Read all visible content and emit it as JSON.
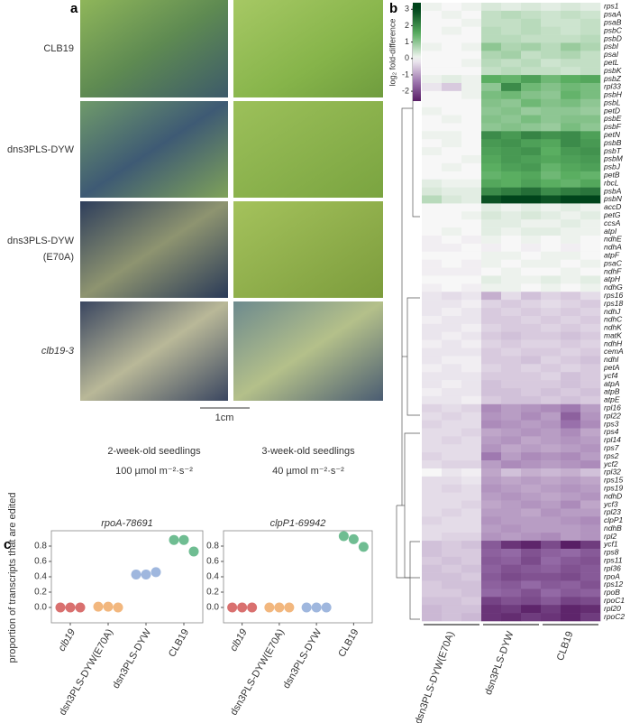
{
  "panel_labels": [
    "a",
    "b",
    "c"
  ],
  "photo_panel": {
    "row_labels": [
      [
        "CLB19"
      ],
      [
        "dns3PLS-DYW"
      ],
      [
        "dns3PLS-DYW",
        "(E70A)"
      ],
      [
        "clb19-3"
      ]
    ],
    "scale_bar": "1cm",
    "column_captions": [
      [
        "2-week-old seedlings",
        "100 µmol m⁻²·s⁻²"
      ],
      [
        "3-week-old seedlings",
        "40 µmol m⁻²·s⁻²"
      ]
    ]
  },
  "chart_data": [
    {
      "type": "heatmap",
      "colorbar": {
        "label": "log₂ fold-difference",
        "ticks": [
          3,
          2,
          1,
          0,
          -1,
          -2
        ],
        "lim": [
          -2.6,
          3.4
        ]
      },
      "clim": [
        -3,
        3
      ],
      "colormap": [
        "#40004b",
        "#9970ab",
        "#f7f7f7",
        "#5aae61",
        "#00441b"
      ],
      "column_groups": [
        "dsn3PLS-DYW(E70A)",
        "dsn3PLS-DYW",
        "CLB19"
      ],
      "rows": [
        "rps1",
        "psaA",
        "psaB",
        "psbC",
        "psbD",
        "psbI",
        "psaI",
        "petL",
        "psbK",
        "psbZ",
        "rpl33",
        "psbH",
        "psbL",
        "petD",
        "psbE",
        "psbF",
        "petN",
        "psbB",
        "psbT",
        "psbM",
        "psbJ",
        "petB",
        "rbcL",
        "psbA",
        "psbN",
        "accD",
        "petG",
        "ccsA",
        "atpI",
        "ndhE",
        "ndhA",
        "atpF",
        "psaC",
        "ndhF",
        "atpH",
        "ndhG",
        "rps16",
        "rps18",
        "ndhJ",
        "ndhC",
        "ndhK",
        "matK",
        "ndhH",
        "cemA",
        "ndhI",
        "petA",
        "ycf4",
        "atpA",
        "atpB",
        "atpE",
        "rpl16",
        "rpl22",
        "rps3",
        "rps4",
        "rpl14",
        "rps7",
        "rps2",
        "ycf2",
        "rpl32",
        "rps15",
        "rps19",
        "ndhD",
        "ycf3",
        "rpl23",
        "clpP1",
        "ndhB",
        "rpl2",
        "ycf1",
        "rps8",
        "rps11",
        "rpl36",
        "rpoA",
        "rps12",
        "rpoB",
        "rpoC1",
        "rpl20",
        "rpoC2"
      ],
      "values": [
        [
          0.1,
          0,
          0.1,
          0.3,
          0.2,
          0.3,
          0.2,
          0.3,
          0.2
        ],
        [
          0,
          0.1,
          0,
          0.5,
          0.6,
          0.5,
          0.4,
          0.5,
          0.4
        ],
        [
          0,
          0,
          0.1,
          0.5,
          0.5,
          0.6,
          0.4,
          0.4,
          0.5
        ],
        [
          0,
          0.1,
          0,
          0.6,
          0.5,
          0.6,
          0.5,
          0.4,
          0.5
        ],
        [
          0,
          0,
          0,
          0.6,
          0.6,
          0.5,
          0.5,
          0.5,
          0.6
        ],
        [
          0.1,
          0,
          0.1,
          1.0,
          0.7,
          0.8,
          0.6,
          0.9,
          0.7
        ],
        [
          0,
          0,
          0,
          0.7,
          0.8,
          0.5,
          0.6,
          0.7,
          0.5
        ],
        [
          0,
          0,
          0.1,
          0.6,
          0.5,
          0.6,
          0.4,
          0.5,
          0.5
        ],
        [
          0,
          0,
          0,
          0.5,
          0.6,
          0.5,
          0.5,
          0.4,
          0.5
        ],
        [
          0.1,
          0.2,
          0.1,
          1.5,
          1.4,
          1.7,
          1.3,
          1.5,
          1.6
        ],
        [
          -0.2,
          -0.5,
          0.1,
          1.0,
          2.0,
          1.3,
          1.1,
          1.3,
          1.2
        ],
        [
          0,
          0,
          0.1,
          1.2,
          1.3,
          1.1,
          1.0,
          1.4,
          1.2
        ],
        [
          0,
          0,
          0,
          1.1,
          1.0,
          1.3,
          1.1,
          1.2,
          1.0
        ],
        [
          0.1,
          0,
          0,
          1.0,
          1.1,
          0.9,
          1.0,
          1.0,
          0.9
        ],
        [
          0,
          0.1,
          0,
          1.1,
          1.0,
          1.2,
          1.0,
          1.1,
          1.1
        ],
        [
          0,
          0,
          0,
          1.0,
          1.1,
          1.0,
          0.9,
          1.2,
          1.0
        ],
        [
          0.1,
          0.1,
          0,
          2.0,
          1.8,
          2.1,
          1.9,
          2.0,
          1.7
        ],
        [
          0,
          0.1,
          0,
          1.8,
          1.9,
          1.7,
          1.6,
          2.0,
          1.8
        ],
        [
          0.1,
          0,
          0,
          1.7,
          1.8,
          1.9,
          1.5,
          1.8,
          1.9
        ],
        [
          0,
          0,
          0.1,
          1.6,
          1.8,
          1.7,
          1.6,
          1.7,
          1.8
        ],
        [
          0,
          0.1,
          0,
          1.5,
          1.7,
          1.8,
          1.4,
          1.6,
          1.7
        ],
        [
          0,
          0,
          0,
          1.4,
          1.5,
          1.6,
          1.3,
          1.5,
          1.4
        ],
        [
          0.2,
          0.1,
          0.1,
          1.6,
          1.5,
          1.7,
          1.5,
          1.4,
          1.6
        ],
        [
          0.3,
          0.2,
          0.2,
          2.0,
          2.2,
          2.4,
          2.0,
          2.2,
          2.3
        ],
        [
          0.6,
          0.3,
          0.2,
          2.8,
          3.3,
          3.0,
          2.8,
          3.1,
          3.4
        ],
        [
          0,
          0,
          0,
          0.2,
          0.1,
          0.2,
          0.1,
          0.2,
          0.1
        ],
        [
          0,
          0,
          0.1,
          0.3,
          0.2,
          0.3,
          0.2,
          0.1,
          0.2
        ],
        [
          0,
          0,
          0,
          0.2,
          0.2,
          0.1,
          0.1,
          0.2,
          0.1
        ],
        [
          0,
          0.1,
          0,
          0.2,
          0.1,
          0.2,
          0.2,
          0.1,
          0.1
        ],
        [
          -0.1,
          0,
          -0.1,
          0.1,
          0,
          0.1,
          0,
          0.1,
          0
        ],
        [
          -0.1,
          -0.1,
          0,
          -0.1,
          0,
          -0.1,
          0,
          -0.1,
          0
        ],
        [
          0,
          0,
          0,
          0.1,
          0.1,
          0,
          0.1,
          0.1,
          0
        ],
        [
          -0.1,
          0,
          -0.1,
          0.1,
          0,
          0.1,
          0.1,
          0,
          0.1
        ],
        [
          -0.1,
          -0.1,
          -0.1,
          0,
          0.1,
          0,
          0,
          0.1,
          0
        ],
        [
          0,
          0,
          0,
          0.2,
          0.1,
          0.1,
          0.2,
          0.1,
          0.2
        ],
        [
          -0.1,
          0,
          -0.1,
          0.1,
          0.1,
          0,
          0.1,
          0,
          0.1
        ],
        [
          -0.2,
          -0.3,
          -0.2,
          -0.8,
          -0.3,
          -0.6,
          -0.4,
          -0.5,
          -0.3
        ],
        [
          -0.2,
          -0.2,
          -0.1,
          -0.4,
          -0.5,
          -0.4,
          -0.3,
          -0.4,
          -0.5
        ],
        [
          -0.2,
          -0.1,
          -0.2,
          -0.5,
          -0.4,
          -0.5,
          -0.4,
          -0.5,
          -0.4
        ],
        [
          -0.1,
          -0.2,
          -0.2,
          -0.5,
          -0.5,
          -0.4,
          -0.5,
          -0.4,
          -0.5
        ],
        [
          -0.2,
          -0.2,
          -0.1,
          -0.4,
          -0.5,
          -0.5,
          -0.4,
          -0.5,
          -0.4
        ],
        [
          -0.2,
          -0.1,
          -0.2,
          -0.5,
          -0.6,
          -0.5,
          -0.5,
          -0.6,
          -0.5
        ],
        [
          -0.1,
          -0.2,
          -0.1,
          -0.4,
          -0.5,
          -0.4,
          -0.4,
          -0.5,
          -0.4
        ],
        [
          -0.2,
          -0.2,
          -0.2,
          -0.5,
          -0.4,
          -0.5,
          -0.5,
          -0.4,
          -0.5
        ],
        [
          -0.2,
          -0.1,
          -0.1,
          -0.5,
          -0.5,
          -0.6,
          -0.4,
          -0.5,
          -0.6
        ],
        [
          -0.1,
          -0.2,
          -0.1,
          -0.4,
          -0.5,
          -0.4,
          -0.5,
          -0.4,
          -0.5
        ],
        [
          -0.2,
          -0.2,
          -0.2,
          -0.5,
          -0.5,
          -0.5,
          -0.4,
          -0.6,
          -0.5
        ],
        [
          -0.2,
          -0.1,
          -0.2,
          -0.6,
          -0.5,
          -0.5,
          -0.5,
          -0.6,
          -0.5
        ],
        [
          -0.1,
          -0.2,
          -0.2,
          -0.6,
          -0.6,
          -0.5,
          -0.6,
          -0.5,
          -0.6
        ],
        [
          -0.2,
          -0.2,
          -0.1,
          -0.5,
          -0.6,
          -0.6,
          -0.5,
          -0.6,
          -0.5
        ],
        [
          -0.4,
          -0.3,
          -0.4,
          -1.2,
          -1.0,
          -1.1,
          -1.2,
          -1.4,
          -1.0
        ],
        [
          -0.3,
          -0.4,
          -0.3,
          -1.1,
          -1.0,
          -1.2,
          -1.0,
          -1.7,
          -1.1
        ],
        [
          -0.4,
          -0.3,
          -0.3,
          -1.2,
          -1.1,
          -1.0,
          -1.1,
          -1.5,
          -1.2
        ],
        [
          -0.3,
          -0.3,
          -0.4,
          -0.9,
          -1.0,
          -1.1,
          -1.0,
          -1.2,
          -0.9
        ],
        [
          -0.3,
          -0.4,
          -0.3,
          -1.0,
          -1.1,
          -0.9,
          -1.0,
          -1.1,
          -1.0
        ],
        [
          -0.3,
          -0.3,
          -0.3,
          -1.1,
          -0.9,
          -1.0,
          -0.9,
          -1.0,
          -1.1
        ],
        [
          -0.4,
          -0.3,
          -0.3,
          -1.4,
          -1.0,
          -1.2,
          -1.1,
          -1.2,
          -1.0
        ],
        [
          -0.3,
          -0.4,
          -0.4,
          -1.0,
          -1.2,
          -1.1,
          -1.0,
          -1.1,
          -1.2
        ],
        [
          0,
          -0.2,
          -0.1,
          -0.9,
          -0.6,
          -0.8,
          -0.7,
          -0.8,
          -0.6
        ],
        [
          -0.3,
          -0.3,
          -0.2,
          -1.0,
          -0.9,
          -1.0,
          -0.9,
          -1.0,
          -0.9
        ],
        [
          -0.3,
          -0.4,
          -0.3,
          -1.1,
          -1.0,
          -0.9,
          -1.0,
          -1.1,
          -1.0
        ],
        [
          -0.3,
          -0.3,
          -0.3,
          -1.0,
          -1.1,
          -1.0,
          -0.9,
          -1.0,
          -1.1
        ],
        [
          -0.3,
          -0.3,
          -0.4,
          -0.9,
          -1.0,
          -1.1,
          -1.0,
          -1.2,
          -0.9
        ],
        [
          -0.3,
          -0.4,
          -0.3,
          -1.0,
          -1.0,
          -0.9,
          -1.1,
          -1.0,
          -1.0
        ],
        [
          -0.4,
          -0.3,
          -0.3,
          -1.1,
          -1.0,
          -1.0,
          -1.0,
          -1.1,
          -1.2
        ],
        [
          -0.3,
          -0.3,
          -0.3,
          -1.0,
          -1.1,
          -1.0,
          -1.0,
          -1.0,
          -1.1
        ],
        [
          -0.3,
          -0.4,
          -0.4,
          -1.1,
          -1.0,
          -1.1,
          -1.2,
          -1.0,
          -1.1
        ],
        [
          -0.6,
          -0.5,
          -0.6,
          -1.8,
          -2.3,
          -2.5,
          -2.0,
          -2.6,
          -2.2
        ],
        [
          -0.6,
          -0.5,
          -0.5,
          -1.7,
          -1.6,
          -1.9,
          -1.7,
          -1.6,
          -1.8
        ],
        [
          -0.5,
          -0.6,
          -0.5,
          -1.8,
          -1.7,
          -2.0,
          -1.6,
          -1.8,
          -1.9
        ],
        [
          -0.6,
          -0.5,
          -0.6,
          -1.7,
          -1.9,
          -1.8,
          -1.7,
          -1.9,
          -1.8
        ],
        [
          -0.6,
          -0.6,
          -0.5,
          -1.8,
          -2.0,
          -1.9,
          -1.9,
          -2.0,
          -1.8
        ],
        [
          -0.5,
          -0.6,
          -0.6,
          -1.7,
          -1.8,
          -1.6,
          -1.8,
          -1.7,
          -1.9
        ],
        [
          -0.5,
          -0.5,
          -0.6,
          -1.6,
          -1.7,
          -1.9,
          -1.6,
          -1.8,
          -1.7
        ],
        [
          -0.6,
          -0.6,
          -0.5,
          -2.1,
          -1.9,
          -2.0,
          -1.8,
          -2.1,
          -2.0
        ],
        [
          -0.7,
          -0.6,
          -0.6,
          -2.3,
          -2.2,
          -2.5,
          -2.2,
          -2.5,
          -2.4
        ],
        [
          -0.7,
          -0.6,
          -0.7,
          -2.3,
          -2.4,
          -2.2,
          -2.3,
          -2.5,
          -2.2
        ]
      ]
    },
    {
      "type": "scatter",
      "title": "rpoA-78691",
      "ylabel": "proportion of transcripts that are edited",
      "categories": [
        "clb19",
        "dsn3PLS-DYW(E70A)",
        "dsn3PLS-DYW",
        "CLB19"
      ],
      "colors": [
        "#d9706f",
        "#f2b77e",
        "#9fb7de",
        "#6fbd92"
      ],
      "values": [
        [
          0,
          0,
          0
        ],
        [
          0.01,
          0.01,
          0
        ],
        [
          0.43,
          0.43,
          0.46
        ],
        [
          0.88,
          0.88,
          0.73
        ]
      ],
      "ylim": [
        -0.2,
        1.0
      ],
      "yticks": [
        {
          "value": 0,
          "label": "0.0"
        },
        {
          "value": 0.2,
          "label": "0.2"
        },
        {
          "value": 0.4,
          "label": "0.4"
        },
        {
          "value": 0.6,
          "label": "0.6"
        },
        {
          "value": 0.8,
          "label": "0.8"
        }
      ]
    },
    {
      "type": "scatter",
      "title": "clpP1-69942",
      "categories": [
        "clb19",
        "dsn3PLS-DYW(E70A)",
        "dsn3PLS-DYW",
        "CLB19"
      ],
      "colors": [
        "#d9706f",
        "#f2b77e",
        "#9fb7de",
        "#6fbd92"
      ],
      "values": [
        [
          0,
          0,
          0
        ],
        [
          0,
          0,
          0
        ],
        [
          0,
          0,
          0
        ],
        [
          0.93,
          0.89,
          0.79
        ]
      ],
      "ylim": [
        -0.2,
        1.0
      ],
      "yticks": [
        {
          "value": 0,
          "label": "0.0"
        },
        {
          "value": 0.2,
          "label": "0.2"
        },
        {
          "value": 0.4,
          "label": "0.4"
        },
        {
          "value": 0.6,
          "label": "0.6"
        },
        {
          "value": 0.8,
          "label": "0.8"
        }
      ]
    }
  ]
}
